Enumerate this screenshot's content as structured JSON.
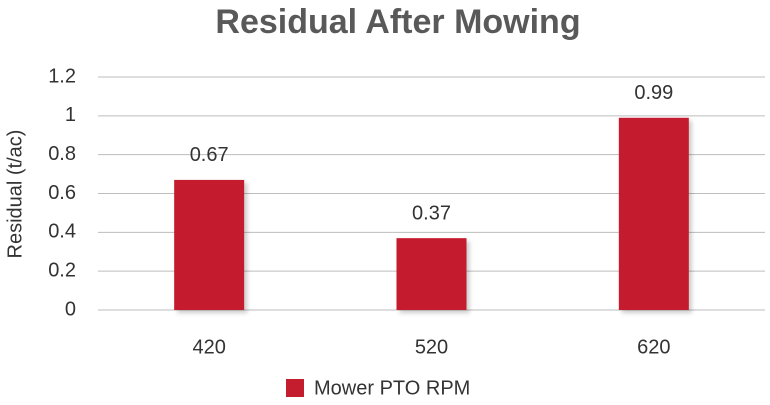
{
  "chart_data": {
    "type": "bar",
    "title": "Residual After Mowing",
    "y_label": "Residual (t/ac)",
    "categories": [
      "420",
      "520",
      "620"
    ],
    "series": [
      {
        "name": "Mower PTO RPM",
        "color": "#c41e2e",
        "values": [
          0.67,
          0.37,
          0.99
        ]
      }
    ],
    "ylim": [
      0,
      1.2
    ],
    "yticks": [
      0,
      0.2,
      0.4,
      0.6,
      0.8,
      1,
      1.2
    ],
    "grid": true,
    "legend": "bottom"
  }
}
